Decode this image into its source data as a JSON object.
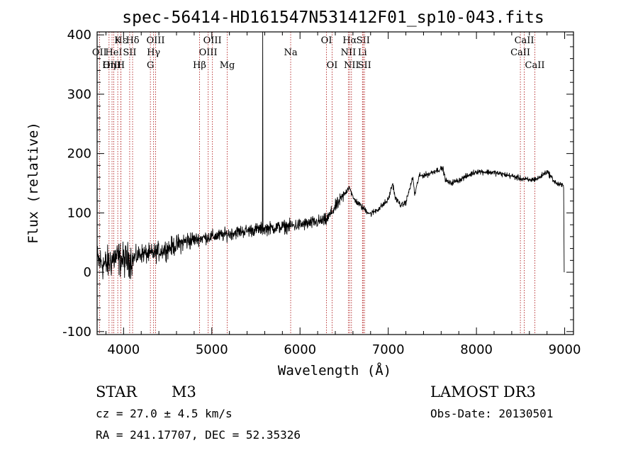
{
  "chart_data": {
    "type": "line",
    "title": "spec-56414-HD161547N531412F01_sp10-043.fits",
    "xlabel": "Wavelength (Å)",
    "ylabel": "Flux (relative)",
    "xlim": [
      3700,
      9100
    ],
    "ylim": [
      -105,
      405
    ],
    "x_ticks": [
      4000,
      5000,
      6000,
      7000,
      8000,
      9000
    ],
    "y_ticks": [
      -100,
      0,
      100,
      200,
      300,
      400
    ],
    "line_color": "#b22222",
    "spectrum_color": "#000000",
    "spectrum_anchors": [
      [
        3700,
        20
      ],
      [
        3800,
        12
      ],
      [
        3900,
        25
      ],
      [
        4000,
        20
      ],
      [
        4100,
        22
      ],
      [
        4200,
        32
      ],
      [
        4300,
        30
      ],
      [
        4500,
        40
      ],
      [
        4700,
        52
      ],
      [
        4900,
        58
      ],
      [
        5100,
        62
      ],
      [
        5300,
        68
      ],
      [
        5500,
        72
      ],
      [
        5700,
        75
      ],
      [
        5900,
        78
      ],
      [
        6100,
        82
      ],
      [
        6300,
        88
      ],
      [
        6400,
        110
      ],
      [
        6500,
        130
      ],
      [
        6560,
        145
      ],
      [
        6600,
        125
      ],
      [
        6700,
        110
      ],
      [
        6800,
        98
      ],
      [
        6900,
        108
      ],
      [
        7000,
        122
      ],
      [
        7050,
        150
      ],
      [
        7080,
        125
      ],
      [
        7150,
        112
      ],
      [
        7200,
        118
      ],
      [
        7280,
        160
      ],
      [
        7300,
        130
      ],
      [
        7350,
        162
      ],
      [
        7450,
        165
      ],
      [
        7550,
        172
      ],
      [
        7620,
        175
      ],
      [
        7650,
        155
      ],
      [
        7700,
        150
      ],
      [
        7800,
        155
      ],
      [
        8000,
        170
      ],
      [
        8200,
        168
      ],
      [
        8400,
        162
      ],
      [
        8500,
        158
      ],
      [
        8600,
        155
      ],
      [
        8700,
        158
      ],
      [
        8800,
        170
      ],
      [
        8900,
        150
      ],
      [
        8990,
        145
      ]
    ],
    "spike": {
      "wavelength": 5577,
      "peak": 415
    },
    "spectrum_end": {
      "wavelength": 8995,
      "value": 0
    },
    "noise": [
      {
        "from": 3700,
        "to": 4100,
        "amplitude": 85
      },
      {
        "from": 4100,
        "to": 4800,
        "amplitude": 48
      },
      {
        "from": 4800,
        "to": 6500,
        "amplitude": 32
      },
      {
        "from": 6500,
        "to": 7000,
        "amplitude": 16
      },
      {
        "from": 7000,
        "to": 9000,
        "amplitude": 14
      }
    ],
    "lines": [
      {
        "label": "Hε",
        "wavelength": 3970,
        "row": 1
      },
      {
        "label": "OII",
        "wavelength": 3727,
        "row": 2
      },
      {
        "label": "OIII",
        "wavelength": 3869,
        "row": 3
      },
      {
        "label": "Hδ",
        "wavelength": 4102,
        "row": 1
      },
      {
        "label": "K",
        "wavelength": 3934,
        "row": 1
      },
      {
        "label": "HeI",
        "wavelength": 3889,
        "row": 2
      },
      {
        "label": "Hη",
        "wavelength": 3835,
        "row": 3
      },
      {
        "label": "H",
        "wavelength": 3969,
        "row": 3
      },
      {
        "label": "SII",
        "wavelength": 4069,
        "row": 2
      },
      {
        "label": "OIII",
        "wavelength": 4363,
        "row": 1
      },
      {
        "label": "Hγ",
        "wavelength": 4340,
        "row": 2
      },
      {
        "label": "G",
        "wavelength": 4304,
        "row": 3
      },
      {
        "label": "OIII",
        "wavelength": 5007,
        "row": 1
      },
      {
        "label": "OIII",
        "wavelength": 4959,
        "row": 2
      },
      {
        "label": "Hβ",
        "wavelength": 4861,
        "row": 3
      },
      {
        "label": "Mg",
        "wavelength": 5175,
        "row": 3
      },
      {
        "label": "Na",
        "wavelength": 5894,
        "row": 2
      },
      {
        "label": "OI",
        "wavelength": 6300,
        "row": 1
      },
      {
        "label": "OI",
        "wavelength": 6364,
        "row": 3
      },
      {
        "label": "Hα",
        "wavelength": 6563,
        "row": 1
      },
      {
        "label": "NII",
        "wavelength": 6548,
        "row": 2
      },
      {
        "label": "NII",
        "wavelength": 6583,
        "row": 3
      },
      {
        "label": "SII",
        "wavelength": 6716,
        "row": 1
      },
      {
        "label": "Li",
        "wavelength": 6708,
        "row": 2
      },
      {
        "label": "SII",
        "wavelength": 6731,
        "row": 3
      },
      {
        "label": "CaII",
        "wavelength": 8542,
        "row": 1
      },
      {
        "label": "CaII",
        "wavelength": 8498,
        "row": 2
      },
      {
        "label": "CaII",
        "wavelength": 8662,
        "row": 3
      }
    ]
  },
  "info": {
    "object_class": "STAR",
    "subclass": "M3",
    "survey": "LAMOST DR3",
    "redshift": "cz = 27.0 ± 4.5 km/s",
    "obs_date": "Obs-Date: 20130501",
    "coords": "RA = 241.17707, DEC =  52.35326"
  }
}
